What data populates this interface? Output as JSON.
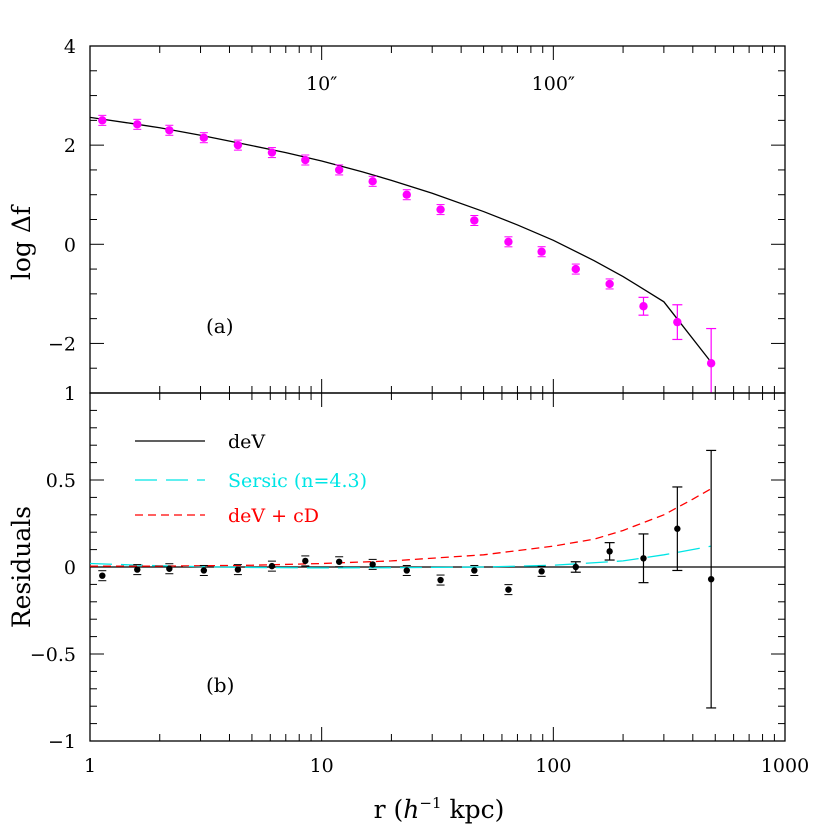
{
  "chart_data": [
    {
      "panel": "a",
      "type": "scatter",
      "panel_label": "(a)",
      "ylabel": "log Δf",
      "xscale": "log",
      "xlim": [
        1,
        1000
      ],
      "ylim": [
        -3,
        4
      ],
      "y_ticks": [
        {
          "v": 4,
          "label": "4"
        },
        {
          "v": 2,
          "label": "2"
        },
        {
          "v": 0,
          "label": "0"
        },
        {
          "v": -2,
          "label": "−2"
        }
      ],
      "top_axis_ticks": [
        {
          "x": 10,
          "label": "10″"
        },
        {
          "x": 100,
          "label": "100″"
        }
      ],
      "points_color": "#ff00ff",
      "points": [
        {
          "x": 1.13,
          "y": 2.5,
          "err": 0.03
        },
        {
          "x": 1.6,
          "y": 2.42,
          "err": 0.03
        },
        {
          "x": 2.2,
          "y": 2.3,
          "err": 0.03
        },
        {
          "x": 3.1,
          "y": 2.15,
          "err": 0.03
        },
        {
          "x": 4.35,
          "y": 2.0,
          "err": 0.03
        },
        {
          "x": 6.1,
          "y": 1.85,
          "err": 0.03
        },
        {
          "x": 8.5,
          "y": 1.7,
          "err": 0.03
        },
        {
          "x": 11.9,
          "y": 1.5,
          "err": 0.03
        },
        {
          "x": 16.6,
          "y": 1.27,
          "err": 0.03
        },
        {
          "x": 23.3,
          "y": 1.0,
          "err": 0.03
        },
        {
          "x": 32.6,
          "y": 0.7,
          "err": 0.03
        },
        {
          "x": 45.6,
          "y": 0.48,
          "err": 0.03
        },
        {
          "x": 64,
          "y": 0.05,
          "err": 0.03
        },
        {
          "x": 89,
          "y": -0.15,
          "err": 0.03
        },
        {
          "x": 125,
          "y": -0.5,
          "err": 0.03
        },
        {
          "x": 175,
          "y": -0.8,
          "err": 0.05
        },
        {
          "x": 245,
          "y": -1.25,
          "err": 0.18
        },
        {
          "x": 343,
          "y": -1.57,
          "err": 0.35
        },
        {
          "x": 480,
          "y": -2.4,
          "err": 0.7
        }
      ],
      "curve": {
        "name": "deV",
        "color": "#000000",
        "x": [
          1,
          1.5,
          2,
          3,
          5,
          7,
          10,
          15,
          20,
          30,
          50,
          70,
          100,
          150,
          200,
          300,
          480
        ],
        "y": [
          2.56,
          2.44,
          2.35,
          2.2,
          1.99,
          1.85,
          1.68,
          1.46,
          1.29,
          1.03,
          0.66,
          0.39,
          0.08,
          -0.33,
          -0.65,
          -1.16,
          -2.38
        ]
      }
    },
    {
      "panel": "b",
      "type": "scatter",
      "panel_label": "(b)",
      "ylabel": "Residuals",
      "xlabel_parts": [
        "r (",
        "h",
        "−1",
        " kpc)"
      ],
      "xscale": "log",
      "xlim": [
        1,
        1000
      ],
      "ylim": [
        -1,
        1
      ],
      "x_ticks": [
        {
          "v": 1,
          "label": "1"
        },
        {
          "v": 10,
          "label": "10"
        },
        {
          "v": 100,
          "label": "100"
        },
        {
          "v": 1000,
          "label": "1000"
        }
      ],
      "y_ticks": [
        {
          "v": 1,
          "label": "1"
        },
        {
          "v": 0.5,
          "label": "0.5"
        },
        {
          "v": 0,
          "label": "0"
        },
        {
          "v": -0.5,
          "label": "−0.5"
        },
        {
          "v": -1,
          "label": "−1"
        }
      ],
      "points_color": "#000000",
      "points": [
        {
          "x": 1.13,
          "y": -0.05,
          "err": 0.02
        },
        {
          "x": 1.6,
          "y": -0.015,
          "err": 0.02
        },
        {
          "x": 2.2,
          "y": -0.01,
          "err": 0.01
        },
        {
          "x": 3.1,
          "y": -0.02,
          "err": 0.01
        },
        {
          "x": 4.35,
          "y": -0.015,
          "err": 0.01
        },
        {
          "x": 6.1,
          "y": 0.005,
          "err": 0.01
        },
        {
          "x": 8.5,
          "y": 0.035,
          "err": 0.01
        },
        {
          "x": 11.9,
          "y": 0.03,
          "err": 0.01
        },
        {
          "x": 16.6,
          "y": 0.015,
          "err": 0.01
        },
        {
          "x": 23.3,
          "y": -0.02,
          "err": 0.01
        },
        {
          "x": 32.6,
          "y": -0.075,
          "err": 0.01
        },
        {
          "x": 45.6,
          "y": -0.02,
          "err": 0.015
        },
        {
          "x": 64,
          "y": -0.13,
          "err": 0.015
        },
        {
          "x": 89,
          "y": -0.025,
          "err": 0.02
        },
        {
          "x": 125,
          "y": 0.0,
          "err": 0.03
        },
        {
          "x": 175,
          "y": 0.09,
          "err": 0.05
        },
        {
          "x": 245,
          "y": 0.05,
          "err": 0.14
        },
        {
          "x": 343,
          "y": 0.22,
          "err": 0.24
        },
        {
          "x": 480,
          "y": -0.07,
          "err": 0.74
        }
      ],
      "series": [
        {
          "name": "deV",
          "color": "#000000",
          "dash": "solid",
          "x": [
            1,
            1000
          ],
          "y": [
            0,
            0
          ]
        },
        {
          "name": "Sersic (n=4.3)",
          "color": "#00e5e5",
          "dash": "long",
          "x": [
            1,
            1.5,
            2,
            3,
            5,
            10,
            20,
            50,
            100,
            200,
            300,
            480
          ],
          "y": [
            0.02,
            0.012,
            0.007,
            0.002,
            -0.003,
            -0.005,
            -0.004,
            0.0,
            0.01,
            0.035,
            0.07,
            0.12
          ]
        },
        {
          "name": "deV + cD",
          "color": "#ff0000",
          "dash": "short",
          "x": [
            1,
            2,
            5,
            10,
            20,
            50,
            100,
            150,
            200,
            300,
            400,
            480
          ],
          "y": [
            0.005,
            0.005,
            0.01,
            0.02,
            0.035,
            0.07,
            0.12,
            0.16,
            0.21,
            0.3,
            0.39,
            0.45
          ]
        }
      ],
      "legend": [
        {
          "label": "deV",
          "color": "#000000",
          "dash": "solid"
        },
        {
          "label": "Sersic (n=4.3)",
          "color": "#00e5e5",
          "dash": "long"
        },
        {
          "label": "deV + cD",
          "color": "#ff0000",
          "dash": "short"
        }
      ]
    }
  ]
}
